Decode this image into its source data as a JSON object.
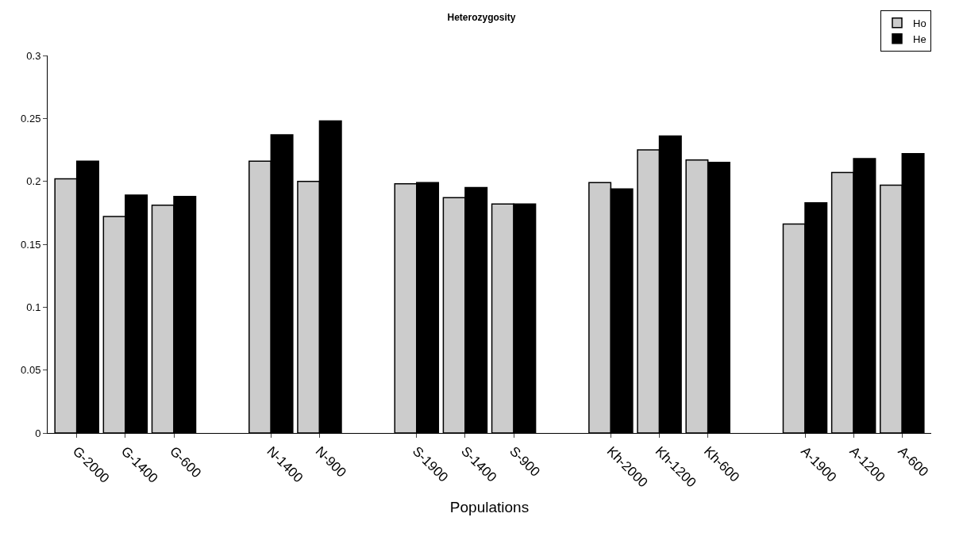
{
  "chart_data": {
    "type": "bar",
    "title": "Heterozygosity",
    "xlabel": "Populations",
    "categories": [
      "G-2000",
      "G-1400",
      "G-600",
      null,
      "N-1400",
      "N-900",
      null,
      "S-1900",
      "S-1400",
      "S-900",
      null,
      "Kh-2000",
      "Kh-1200",
      "Kh-600",
      null,
      "A-1900",
      "A-1200",
      "A-600"
    ],
    "series": [
      {
        "name": "Ho",
        "color": "#cccccc",
        "values": [
          0.202,
          0.172,
          0.181,
          null,
          0.216,
          0.2,
          null,
          0.198,
          0.187,
          0.182,
          null,
          0.199,
          0.225,
          0.217,
          null,
          0.166,
          0.207,
          0.197
        ]
      },
      {
        "name": "He",
        "color": "#000000",
        "values": [
          0.216,
          0.189,
          0.188,
          null,
          0.237,
          0.248,
          null,
          0.199,
          0.195,
          0.182,
          null,
          0.194,
          0.236,
          0.215,
          null,
          0.183,
          0.218,
          0.222
        ]
      }
    ],
    "ylim": [
      0,
      0.3
    ],
    "yticks": [
      0,
      0.05,
      0.1,
      0.15,
      0.2,
      0.25,
      0.3
    ],
    "legend": "top right"
  }
}
